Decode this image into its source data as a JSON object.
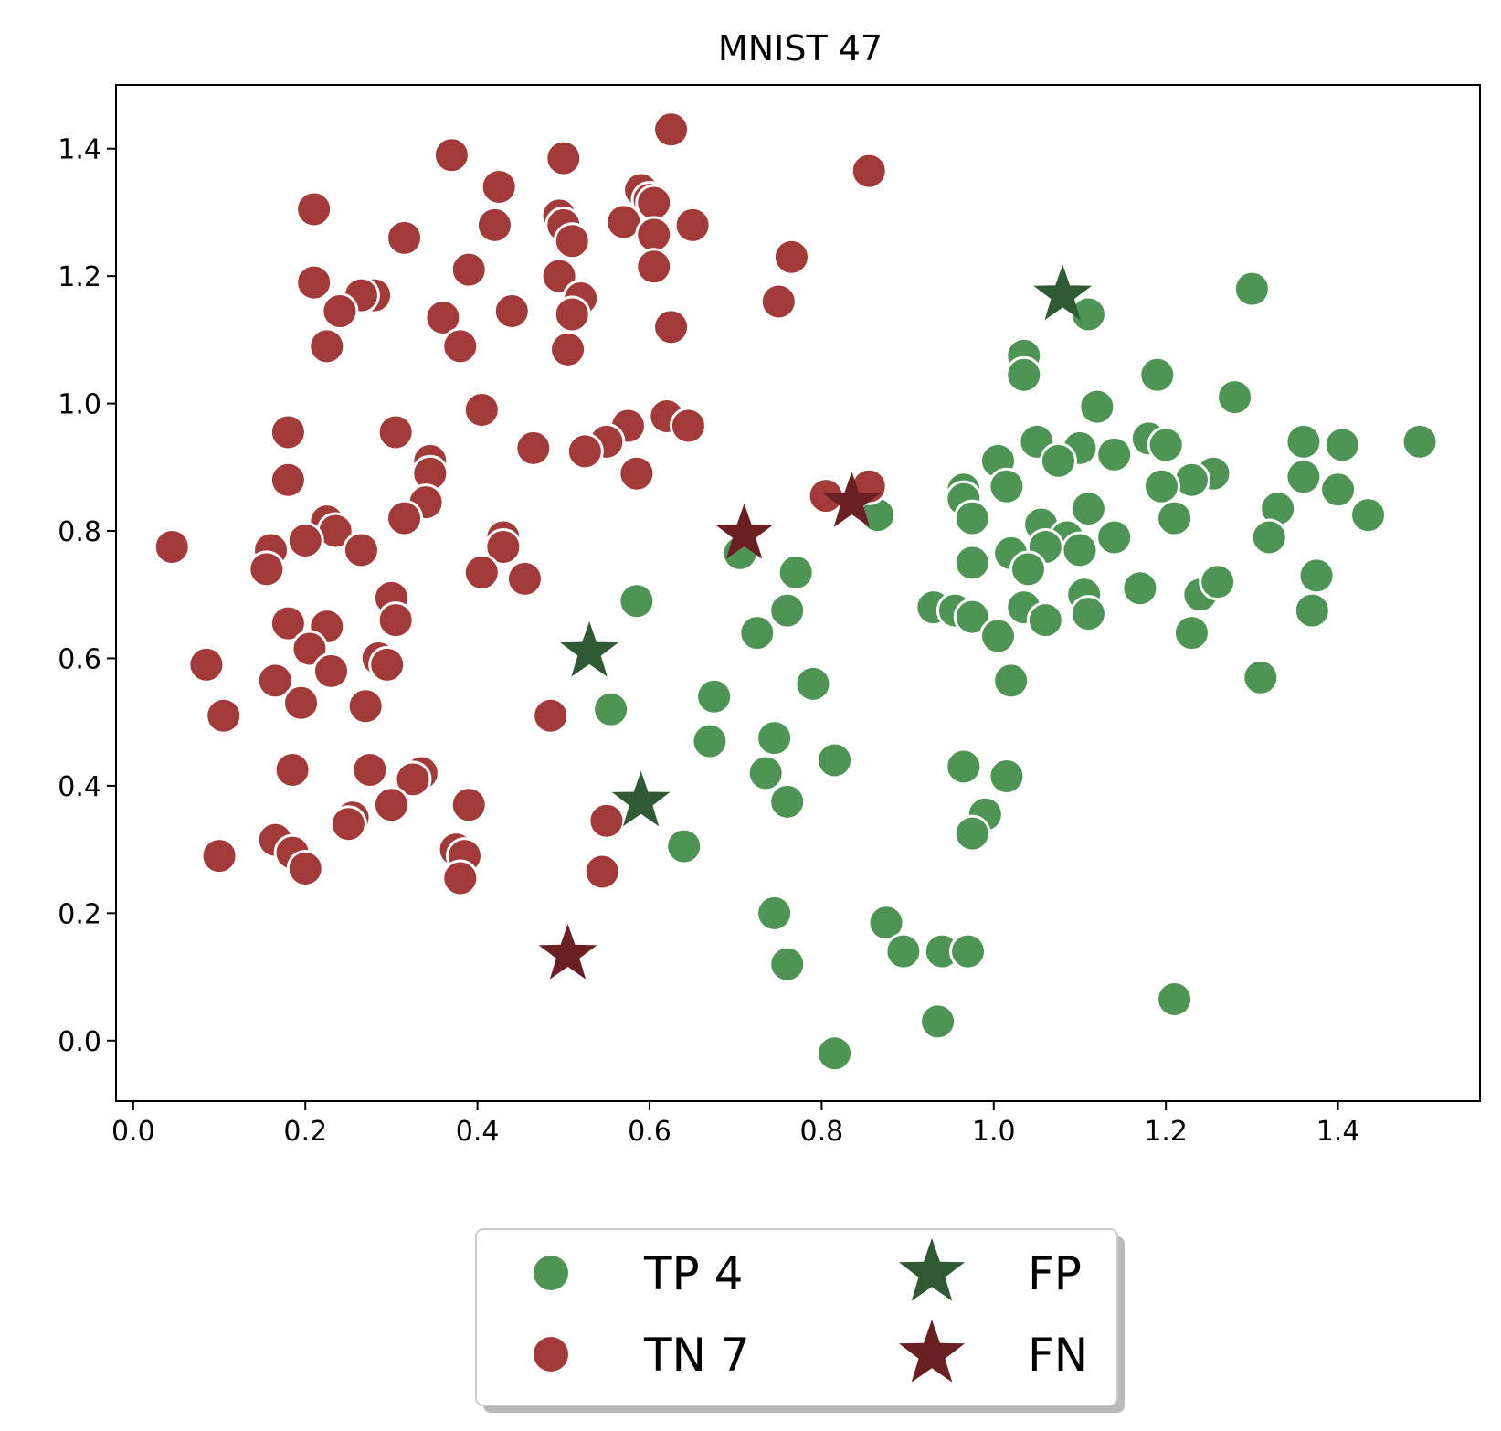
{
  "chart_data": {
    "type": "scatter",
    "title": "MNIST 47",
    "xlabel": "",
    "ylabel": "",
    "xlim": [
      -0.02,
      1.565
    ],
    "ylim": [
      -0.095,
      1.5
    ],
    "xticks": [
      "0.0",
      "0.2",
      "0.4",
      "0.6",
      "0.8",
      "1.0",
      "1.2",
      "1.4"
    ],
    "yticks": [
      "0.0",
      "0.2",
      "0.4",
      "0.6",
      "0.8",
      "1.0",
      "1.2",
      "1.4"
    ],
    "grid": false,
    "legend_placement": "bottom-center, outside plot, two columns",
    "series": [
      {
        "name": "TP 4",
        "marker": "circle",
        "color": "#4e9455",
        "points": [
          [
            1.3,
            1.18
          ],
          [
            1.11,
            1.14
          ],
          [
            1.035,
            1.075
          ],
          [
            1.035,
            1.045
          ],
          [
            1.19,
            1.045
          ],
          [
            1.28,
            1.01
          ],
          [
            1.12,
            0.995
          ],
          [
            1.05,
            0.94
          ],
          [
            1.1,
            0.93
          ],
          [
            1.14,
            0.92
          ],
          [
            1.18,
            0.945
          ],
          [
            1.2,
            0.935
          ],
          [
            1.005,
            0.91
          ],
          [
            1.075,
            0.91
          ],
          [
            1.255,
            0.89
          ],
          [
            1.23,
            0.88
          ],
          [
            1.195,
            0.87
          ],
          [
            1.015,
            0.87
          ],
          [
            0.965,
            0.865
          ],
          [
            0.965,
            0.85
          ],
          [
            0.865,
            0.825
          ],
          [
            0.975,
            0.82
          ],
          [
            1.11,
            0.835
          ],
          [
            1.21,
            0.82
          ],
          [
            1.055,
            0.81
          ],
          [
            1.14,
            0.79
          ],
          [
            1.085,
            0.79
          ],
          [
            1.06,
            0.775
          ],
          [
            1.1,
            0.77
          ],
          [
            1.02,
            0.765
          ],
          [
            0.975,
            0.75
          ],
          [
            1.04,
            0.74
          ],
          [
            1.17,
            0.71
          ],
          [
            1.105,
            0.7
          ],
          [
            1.24,
            0.7
          ],
          [
            1.26,
            0.72
          ],
          [
            0.93,
            0.68
          ],
          [
            0.955,
            0.675
          ],
          [
            0.975,
            0.665
          ],
          [
            1.035,
            0.68
          ],
          [
            1.06,
            0.66
          ],
          [
            1.11,
            0.67
          ],
          [
            1.005,
            0.635
          ],
          [
            1.23,
            0.64
          ],
          [
            1.02,
            0.565
          ],
          [
            1.495,
            0.94
          ],
          [
            1.36,
            0.94
          ],
          [
            1.405,
            0.935
          ],
          [
            1.36,
            0.885
          ],
          [
            1.4,
            0.865
          ],
          [
            1.435,
            0.825
          ],
          [
            1.33,
            0.835
          ],
          [
            1.32,
            0.79
          ],
          [
            1.375,
            0.73
          ],
          [
            1.37,
            0.675
          ],
          [
            1.31,
            0.57
          ],
          [
            0.705,
            0.765
          ],
          [
            0.77,
            0.735
          ],
          [
            0.76,
            0.675
          ],
          [
            0.725,
            0.64
          ],
          [
            0.585,
            0.69
          ],
          [
            0.555,
            0.52
          ],
          [
            0.675,
            0.54
          ],
          [
            0.79,
            0.56
          ],
          [
            0.67,
            0.47
          ],
          [
            0.745,
            0.475
          ],
          [
            0.735,
            0.42
          ],
          [
            0.76,
            0.375
          ],
          [
            0.815,
            0.44
          ],
          [
            0.64,
            0.305
          ],
          [
            0.745,
            0.2
          ],
          [
            0.76,
            0.12
          ],
          [
            0.875,
            0.185
          ],
          [
            0.895,
            0.14
          ],
          [
            0.94,
            0.14
          ],
          [
            0.97,
            0.14
          ],
          [
            0.965,
            0.43
          ],
          [
            1.015,
            0.415
          ],
          [
            0.99,
            0.355
          ],
          [
            0.975,
            0.325
          ],
          [
            0.935,
            0.03
          ],
          [
            0.815,
            -0.02
          ],
          [
            1.21,
            0.065
          ]
        ]
      },
      {
        "name": "TN 7",
        "marker": "circle",
        "color": "#a33a3a",
        "points": [
          [
            0.625,
            1.43
          ],
          [
            0.37,
            1.39
          ],
          [
            0.5,
            1.385
          ],
          [
            0.855,
            1.365
          ],
          [
            0.425,
            1.34
          ],
          [
            0.59,
            1.335
          ],
          [
            0.6,
            1.32
          ],
          [
            0.605,
            1.315
          ],
          [
            0.21,
            1.305
          ],
          [
            0.495,
            1.295
          ],
          [
            0.57,
            1.285
          ],
          [
            0.42,
            1.28
          ],
          [
            0.5,
            1.28
          ],
          [
            0.65,
            1.28
          ],
          [
            0.315,
            1.26
          ],
          [
            0.51,
            1.255
          ],
          [
            0.605,
            1.265
          ],
          [
            0.765,
            1.23
          ],
          [
            0.605,
            1.215
          ],
          [
            0.39,
            1.21
          ],
          [
            0.495,
            1.2
          ],
          [
            0.21,
            1.19
          ],
          [
            0.28,
            1.17
          ],
          [
            0.265,
            1.17
          ],
          [
            0.52,
            1.165
          ],
          [
            0.75,
            1.16
          ],
          [
            0.24,
            1.145
          ],
          [
            0.44,
            1.145
          ],
          [
            0.36,
            1.135
          ],
          [
            0.51,
            1.14
          ],
          [
            0.625,
            1.12
          ],
          [
            0.225,
            1.09
          ],
          [
            0.38,
            1.09
          ],
          [
            0.505,
            1.085
          ],
          [
            0.405,
            0.99
          ],
          [
            0.62,
            0.98
          ],
          [
            0.645,
            0.965
          ],
          [
            0.575,
            0.965
          ],
          [
            0.18,
            0.955
          ],
          [
            0.305,
            0.955
          ],
          [
            0.55,
            0.94
          ],
          [
            0.345,
            0.91
          ],
          [
            0.465,
            0.93
          ],
          [
            0.525,
            0.925
          ],
          [
            0.585,
            0.89
          ],
          [
            0.345,
            0.89
          ],
          [
            0.18,
            0.88
          ],
          [
            0.805,
            0.855
          ],
          [
            0.34,
            0.845
          ],
          [
            0.315,
            0.82
          ],
          [
            0.225,
            0.815
          ],
          [
            0.235,
            0.8
          ],
          [
            0.2,
            0.785
          ],
          [
            0.43,
            0.79
          ],
          [
            0.045,
            0.775
          ],
          [
            0.16,
            0.77
          ],
          [
            0.265,
            0.77
          ],
          [
            0.43,
            0.775
          ],
          [
            0.405,
            0.735
          ],
          [
            0.455,
            0.725
          ],
          [
            0.155,
            0.74
          ],
          [
            0.3,
            0.695
          ],
          [
            0.305,
            0.66
          ],
          [
            0.18,
            0.655
          ],
          [
            0.225,
            0.65
          ],
          [
            0.205,
            0.615
          ],
          [
            0.285,
            0.6
          ],
          [
            0.085,
            0.59
          ],
          [
            0.295,
            0.59
          ],
          [
            0.23,
            0.58
          ],
          [
            0.165,
            0.565
          ],
          [
            0.195,
            0.53
          ],
          [
            0.27,
            0.525
          ],
          [
            0.105,
            0.51
          ],
          [
            0.485,
            0.51
          ],
          [
            0.185,
            0.425
          ],
          [
            0.275,
            0.425
          ],
          [
            0.335,
            0.42
          ],
          [
            0.325,
            0.41
          ],
          [
            0.39,
            0.37
          ],
          [
            0.3,
            0.37
          ],
          [
            0.255,
            0.35
          ],
          [
            0.55,
            0.345
          ],
          [
            0.25,
            0.34
          ],
          [
            0.165,
            0.315
          ],
          [
            0.185,
            0.295
          ],
          [
            0.375,
            0.3
          ],
          [
            0.385,
            0.29
          ],
          [
            0.1,
            0.29
          ],
          [
            0.2,
            0.27
          ],
          [
            0.545,
            0.265
          ],
          [
            0.38,
            0.255
          ],
          [
            0.855,
            0.87
          ]
        ]
      },
      {
        "name": "FP",
        "marker": "star",
        "color": "#2f5a33",
        "points": [
          [
            1.08,
            1.17
          ],
          [
            0.53,
            0.61
          ],
          [
            0.59,
            0.375
          ]
        ]
      },
      {
        "name": "FN",
        "marker": "star",
        "color": "#6a1f22",
        "points": [
          [
            0.71,
            0.795
          ],
          [
            0.505,
            0.135
          ],
          [
            0.835,
            0.845
          ]
        ]
      }
    ]
  }
}
